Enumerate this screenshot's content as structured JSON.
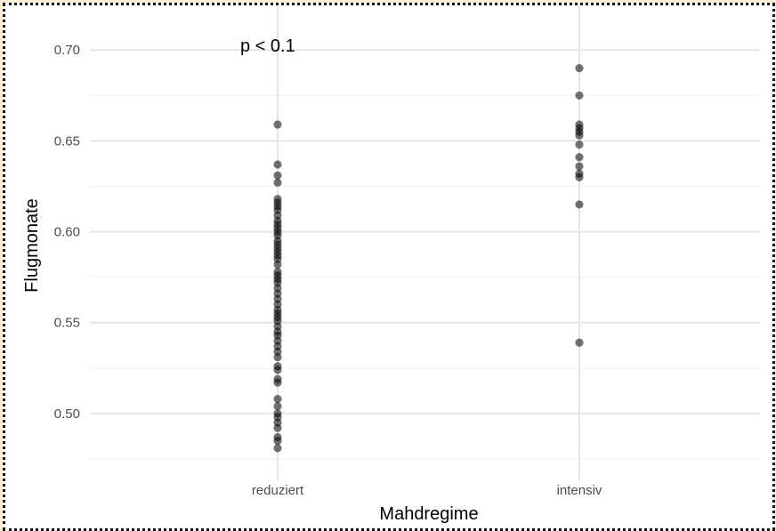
{
  "chart_data": {
    "type": "scatter",
    "xlabel": "Mahdregime",
    "ylabel": "Flugmonate",
    "categories": [
      "reduziert",
      "intensiv"
    ],
    "ylim": [
      0.475,
      0.705
    ],
    "yticks": [
      "0.50",
      "0.55",
      "0.60",
      "0.65",
      "0.70"
    ],
    "annotation": "p < 0.1",
    "grid": true,
    "point_color": "#000000",
    "point_opacity": 0.55,
    "series": [
      {
        "category": "reduziert",
        "values": [
          0.659,
          0.637,
          0.631,
          0.627,
          0.618,
          0.616,
          0.614,
          0.612,
          0.609,
          0.606,
          0.604,
          0.602,
          0.6,
          0.598,
          0.595,
          0.593,
          0.591,
          0.589,
          0.587,
          0.585,
          0.582,
          0.578,
          0.576,
          0.574,
          0.572,
          0.569,
          0.566,
          0.563,
          0.56,
          0.557,
          0.555,
          0.553,
          0.551,
          0.548,
          0.545,
          0.543,
          0.54,
          0.537,
          0.534,
          0.531,
          0.526,
          0.524,
          0.519,
          0.517,
          0.508,
          0.504,
          0.5,
          0.498,
          0.495,
          0.492,
          0.487,
          0.485,
          0.481
        ]
      },
      {
        "category": "intensiv",
        "values": [
          0.69,
          0.675,
          0.659,
          0.657,
          0.655,
          0.653,
          0.648,
          0.641,
          0.636,
          0.632,
          0.63,
          0.615,
          0.539
        ]
      }
    ]
  }
}
